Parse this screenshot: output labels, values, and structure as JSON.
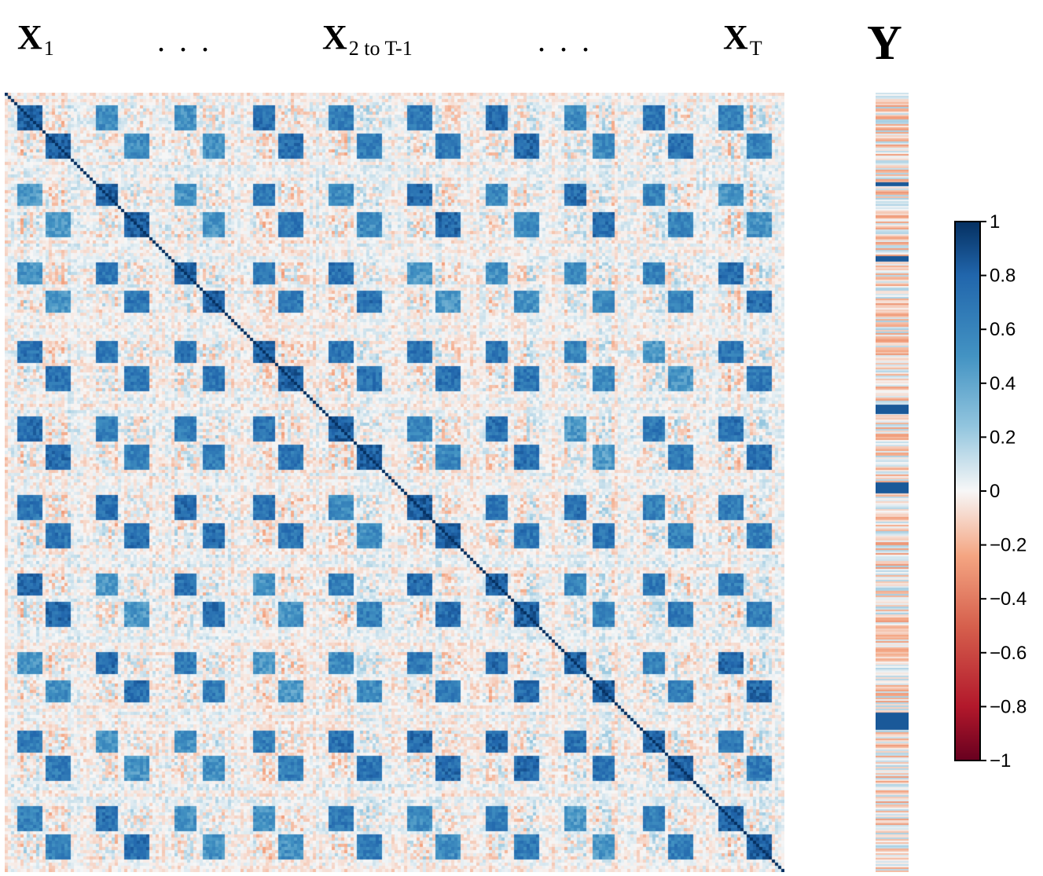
{
  "chart_data": {
    "type": "heatmap",
    "title_x1": {
      "main": "X",
      "sub": "1"
    },
    "title_mid": {
      "main": "X",
      "sub": "2 to T-1"
    },
    "title_xt": {
      "main": "X",
      "sub": "T"
    },
    "ellipsis": "...",
    "title_y": "Y",
    "blocks": 10,
    "diagonal_value": 1,
    "colorbar": {
      "min": -1,
      "max": 1,
      "ticks": [
        "1",
        "0.8",
        "0.6",
        "0.4",
        "0.2",
        "0",
        "−0.2",
        "−0.4",
        "−0.6",
        "−0.8",
        "−1"
      ],
      "tick_values": [
        1,
        0.8,
        0.6,
        0.4,
        0.2,
        0,
        -0.2,
        -0.4,
        -0.6,
        -0.8,
        -1
      ],
      "colors": {
        "neg_strong": "#67001f",
        "neg_mid": "#d6604d",
        "neg_light": "#f4a582",
        "zero": "#f7f7f7",
        "pos_light": "#92c5de",
        "pos_mid": "#4393c3",
        "pos_strong": "#053061"
      }
    },
    "y_strong_positive_bands": [
      0.115,
      0.21,
      0.4,
      0.5,
      0.795
    ]
  }
}
